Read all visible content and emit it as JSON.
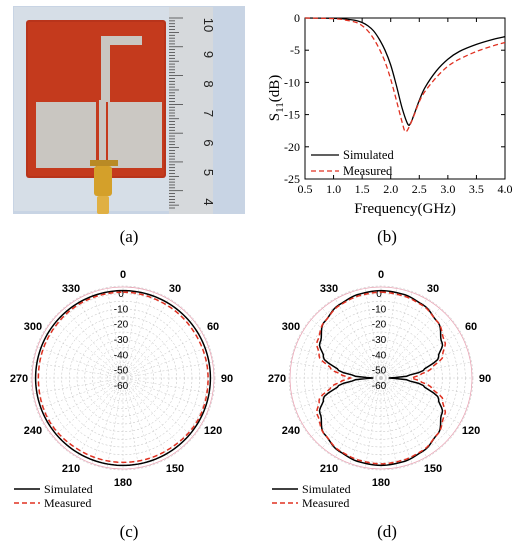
{
  "captions": {
    "a": "(a)",
    "b": "(b)",
    "c": "(c)",
    "d": "(d)"
  },
  "photo": {
    "ruler_numbers": [
      "10",
      "9",
      "8",
      "7",
      "6",
      "5",
      "4"
    ],
    "colors": {
      "substrate": "#b8341b",
      "metal": "#c9c6c1",
      "background": "#c8d4e4",
      "ruler": "#d6d9dc",
      "connector": "#d4a02a"
    }
  },
  "chart_data": [
    {
      "type": "line",
      "panel": "b",
      "xlabel": "Frequency(GHz)",
      "ylabel": "S11(dB)",
      "ylabel_main": "S",
      "ylabel_sub": "11",
      "ylabel_rest": "(dB)",
      "xlim": [
        0.5,
        4.0
      ],
      "ylim": [
        -25,
        0
      ],
      "xticks": [
        "0.5",
        "1.0",
        "1.5",
        "2.0",
        "2.5",
        "3.0",
        "3.5",
        "4.0"
      ],
      "yticks": [
        "0",
        "-5",
        "-10",
        "-15",
        "-20",
        "-25"
      ],
      "grid": false,
      "legend_position": "bottom-left",
      "series": [
        {
          "name": "Simulated",
          "color": "#000000",
          "dash": "solid",
          "x": [
            0.5,
            1.0,
            1.2,
            1.4,
            1.5,
            1.6,
            1.7,
            1.8,
            1.9,
            2.0,
            2.1,
            2.2,
            2.3,
            2.35,
            2.4,
            2.5,
            2.6,
            2.8,
            3.0,
            3.2,
            3.5,
            3.8,
            4.0
          ],
          "y": [
            0,
            -0.05,
            -0.15,
            -0.4,
            -0.7,
            -1.2,
            -2.0,
            -3.3,
            -5.0,
            -7.3,
            -10.5,
            -14.0,
            -16.5,
            -16.3,
            -15.2,
            -12.8,
            -10.8,
            -8.2,
            -6.4,
            -5.2,
            -4.1,
            -3.3,
            -2.9
          ]
        },
        {
          "name": "Measured",
          "color": "#e03020",
          "dash": "dashed",
          "x": [
            0.5,
            1.0,
            1.2,
            1.4,
            1.5,
            1.6,
            1.7,
            1.8,
            1.9,
            2.0,
            2.1,
            2.2,
            2.25,
            2.3,
            2.4,
            2.5,
            2.6,
            2.8,
            3.0,
            3.2,
            3.5,
            3.8,
            4.0
          ],
          "y": [
            0,
            -0.1,
            -0.3,
            -0.7,
            -1.2,
            -2.0,
            -3.2,
            -4.8,
            -6.8,
            -9.5,
            -12.8,
            -16.2,
            -17.6,
            -17.3,
            -15.3,
            -13.0,
            -11.4,
            -9.2,
            -7.5,
            -6.4,
            -5.2,
            -4.3,
            -3.8
          ]
        }
      ]
    },
    {
      "type": "polar",
      "panel": "c",
      "angle_ticks": [
        "0",
        "30",
        "60",
        "90",
        "120",
        "150",
        "180",
        "210",
        "240",
        "270",
        "300",
        "330"
      ],
      "radial_ticks": [
        "0",
        "-10",
        "-20",
        "-30",
        "-40",
        "-50",
        "-60"
      ],
      "rlim": [
        -60,
        0
      ],
      "legend_position": "bottom-left",
      "series": [
        {
          "name": "Simulated",
          "color": "#000000",
          "dash": "solid",
          "angles_deg": [
            0,
            30,
            60,
            90,
            120,
            150,
            180,
            210,
            240,
            270,
            300,
            330
          ],
          "values_db": [
            -3,
            -3,
            -3,
            -3,
            -3,
            -3,
            -3,
            -3,
            -3,
            -3,
            -3,
            -3
          ]
        },
        {
          "name": "Measured",
          "color": "#e03020",
          "dash": "dashed",
          "angles_deg": [
            0,
            30,
            60,
            90,
            120,
            150,
            180,
            210,
            240,
            270,
            300,
            330
          ],
          "values_db": [
            -4,
            -4.5,
            -4.8,
            -4.5,
            -4,
            -4.8,
            -5,
            -5,
            -4.3,
            -4.8,
            -4.5,
            -4
          ]
        }
      ]
    },
    {
      "type": "polar",
      "panel": "d",
      "angle_ticks": [
        "0",
        "30",
        "60",
        "90",
        "120",
        "150",
        "180",
        "210",
        "240",
        "270",
        "300",
        "330"
      ],
      "radial_ticks": [
        "0",
        "-10",
        "-20",
        "-30",
        "-40",
        "-50",
        "-60"
      ],
      "rlim": [
        -60,
        0
      ],
      "legend_position": "bottom-left",
      "series": [
        {
          "name": "Simulated",
          "color": "#000000",
          "dash": "solid",
          "angles_deg": [
            0,
            15,
            30,
            45,
            60,
            70,
            80,
            85,
            90,
            95,
            100,
            110,
            120,
            135,
            150,
            165,
            180,
            195,
            210,
            225,
            240,
            250,
            260,
            265,
            270,
            275,
            280,
            290,
            300,
            315,
            330,
            345
          ],
          "values_db": [
            -3,
            -3.5,
            -5,
            -8,
            -14,
            -20,
            -32,
            -42,
            -55,
            -42,
            -32,
            -20,
            -14,
            -8,
            -5,
            -3.5,
            -3,
            -3.5,
            -5,
            -8,
            -14,
            -20,
            -32,
            -42,
            -55,
            -42,
            -32,
            -20,
            -14,
            -8,
            -5,
            -3.5
          ]
        },
        {
          "name": "Measured",
          "color": "#e03020",
          "dash": "dashed",
          "angles_deg": [
            0,
            15,
            30,
            45,
            60,
            70,
            80,
            85,
            90,
            95,
            100,
            110,
            120,
            135,
            150,
            165,
            180,
            195,
            210,
            225,
            240,
            250,
            260,
            265,
            270,
            275,
            280,
            290,
            300,
            315,
            330,
            345
          ],
          "values_db": [
            -4,
            -4.5,
            -5.5,
            -8,
            -12,
            -17,
            -27,
            -34,
            -40,
            -34,
            -27,
            -17,
            -12,
            -8,
            -5.5,
            -4.5,
            -4,
            -4.5,
            -5.5,
            -8,
            -12,
            -17,
            -27,
            -34,
            -40,
            -34,
            -27,
            -17,
            -12,
            -8,
            -5.5,
            -4.5
          ]
        }
      ]
    }
  ]
}
